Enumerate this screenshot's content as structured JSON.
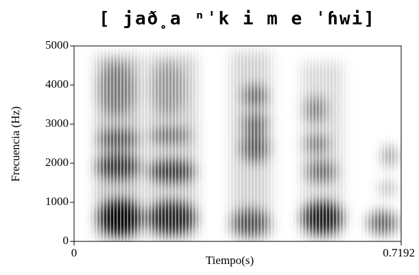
{
  "chart_data": {
    "type": "spectrogram",
    "title": "[ jað̥a ⁿˈk i  m e ˈɦwi]",
    "x_label": "Tiempo(s)",
    "y_label": "Frecuencia (Hz)",
    "xlim": [
      0,
      0.7192
    ],
    "xticks": [
      0,
      0.7192
    ],
    "ylim": [
      0,
      5000
    ],
    "yticks": [
      0,
      1000,
      2000,
      3000,
      4000,
      5000
    ]
  }
}
